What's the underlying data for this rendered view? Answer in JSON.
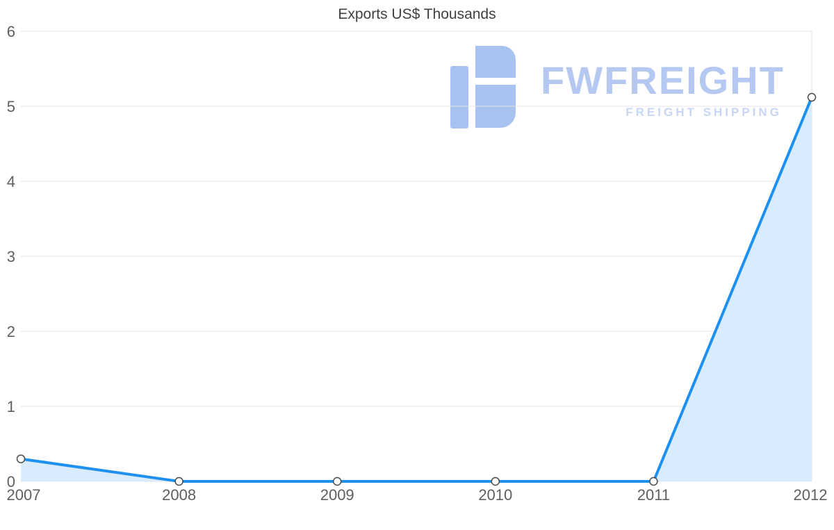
{
  "title": "Exports US$ Thousands",
  "watermark": {
    "brand": "FWFREIGHT",
    "tagline": "FREIGHT SHIPPING",
    "logo_color": "#a9c3f0"
  },
  "chart_data": {
    "type": "area",
    "title": "Exports US$ Thousands",
    "x": [
      2007,
      2008,
      2009,
      2010,
      2011,
      2012
    ],
    "values": [
      0.3,
      0,
      0,
      0,
      0,
      5.12
    ],
    "xlabel": "",
    "ylabel": "",
    "ylim": [
      0,
      6
    ],
    "yticks": [
      0,
      1,
      2,
      3,
      4,
      5,
      6
    ],
    "grid": true,
    "legend": "none",
    "line_color": "#1e90f0",
    "fill_color": "#d9ecfd",
    "marker_fill": "#ffffff",
    "marker_stroke": "#4a4a4a"
  }
}
